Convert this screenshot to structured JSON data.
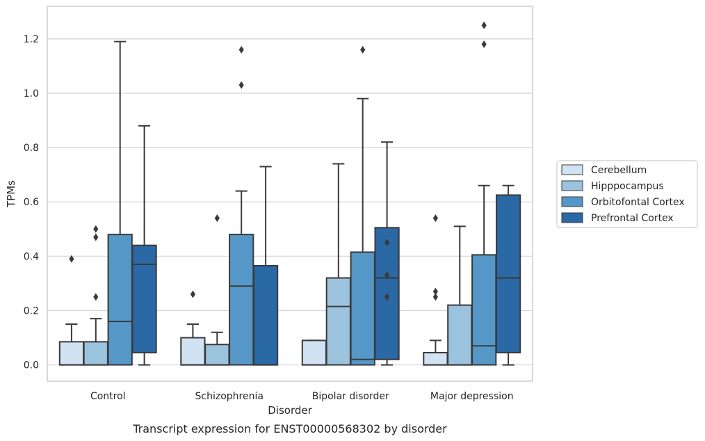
{
  "caption": "Transcript expression for ENST00000568302 by disorder",
  "chart_data": {
    "type": "box",
    "xlabel": "Disorder",
    "ylabel": "TPMs",
    "ylim": [
      -0.06,
      1.32
    ],
    "yticks": [
      "0.0",
      "0.2",
      "0.4",
      "0.6",
      "0.8",
      "1.0",
      "1.2"
    ],
    "categories": [
      "Control",
      "Schizophrenia",
      "Bipolar disorder",
      "Major depression"
    ],
    "grid": "horizontal",
    "legend_position": "right",
    "series": [
      {
        "name": "Cerebellum",
        "color": "#d1e2f2",
        "boxes": [
          {
            "whisker_low": 0,
            "q1": 0,
            "median": 0.0,
            "q3": 0.085,
            "whisker_high": 0.15,
            "outliers": [
              0.39
            ]
          },
          {
            "whisker_low": 0,
            "q1": 0,
            "median": 0.0,
            "q3": 0.1,
            "whisker_high": 0.15,
            "outliers": [
              0.26
            ]
          },
          {
            "whisker_low": 0,
            "q1": 0,
            "median": 0.0,
            "q3": 0.09,
            "whisker_high": 0.09,
            "outliers": []
          },
          {
            "whisker_low": 0,
            "q1": 0,
            "median": 0.0,
            "q3": 0.045,
            "whisker_high": 0.09,
            "outliers": [
              0.25,
              0.27,
              0.54
            ]
          }
        ]
      },
      {
        "name": "Hipppocampus",
        "color": "#9cc3de",
        "boxes": [
          {
            "whisker_low": 0,
            "q1": 0,
            "median": 0.0,
            "q3": 0.085,
            "whisker_high": 0.17,
            "outliers": [
              0.25,
              0.47,
              0.5
            ]
          },
          {
            "whisker_low": 0,
            "q1": 0,
            "median": 0.0,
            "q3": 0.075,
            "whisker_high": 0.12,
            "outliers": [
              0.54
            ]
          },
          {
            "whisker_low": 0,
            "q1": 0,
            "median": 0.215,
            "q3": 0.32,
            "whisker_high": 0.74,
            "outliers": []
          },
          {
            "whisker_low": 0,
            "q1": 0,
            "median": 0.0,
            "q3": 0.22,
            "whisker_high": 0.51,
            "outliers": []
          }
        ]
      },
      {
        "name": "Orbitofontal Cortex",
        "color": "#5598c8",
        "boxes": [
          {
            "whisker_low": 0,
            "q1": 0,
            "median": 0.16,
            "q3": 0.48,
            "whisker_high": 1.19,
            "outliers": []
          },
          {
            "whisker_low": 0,
            "q1": 0,
            "median": 0.29,
            "q3": 0.48,
            "whisker_high": 0.64,
            "outliers": [
              1.03,
              1.16
            ]
          },
          {
            "whisker_low": 0,
            "q1": 0,
            "median": 0.02,
            "q3": 0.415,
            "whisker_high": 0.98,
            "outliers": [
              1.16
            ]
          },
          {
            "whisker_low": 0,
            "q1": 0,
            "median": 0.07,
            "q3": 0.405,
            "whisker_high": 0.66,
            "outliers": [
              1.18,
              1.25
            ]
          }
        ]
      },
      {
        "name": "Prefrontal Cortex",
        "color": "#2b68a6",
        "boxes": [
          {
            "whisker_low": 0,
            "q1": 0.045,
            "median": 0.37,
            "q3": 0.44,
            "whisker_high": 0.88,
            "outliers": []
          },
          {
            "whisker_low": 0,
            "q1": 0,
            "median": 0.0,
            "q3": 0.365,
            "whisker_high": 0.73,
            "outliers": []
          },
          {
            "whisker_low": 0,
            "q1": 0.02,
            "median": 0.32,
            "q3": 0.505,
            "whisker_high": 0.82,
            "outliers": [
              0.25,
              0.33,
              0.45
            ]
          },
          {
            "whisker_low": 0,
            "q1": 0.045,
            "median": 0.32,
            "q3": 0.625,
            "whisker_high": 0.66,
            "outliers": []
          }
        ]
      }
    ]
  }
}
